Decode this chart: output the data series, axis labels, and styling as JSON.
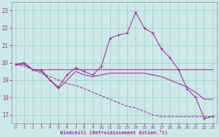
{
  "xlabel": "Windchill (Refroidissement éolien,°C)",
  "background_color": "#cce8e8",
  "grid_color": "#aacccc",
  "line_color": "#993399",
  "x_ticks": [
    0,
    1,
    2,
    3,
    4,
    5,
    6,
    7,
    8,
    9,
    10,
    11,
    12,
    13,
    14,
    15,
    16,
    17,
    18,
    19,
    20,
    21,
    22,
    23
  ],
  "y_ticks": [
    17,
    18,
    19,
    20,
    21,
    22,
    23
  ],
  "xlim": [
    -0.5,
    23.5
  ],
  "ylim": [
    16.5,
    23.5
  ],
  "lines": [
    {
      "x": [
        0,
        1,
        2,
        3,
        4,
        5,
        6,
        7,
        8,
        9,
        10,
        11,
        12,
        13,
        14,
        15,
        16,
        17,
        18,
        19,
        20,
        21,
        22,
        23
      ],
      "y": [
        19.9,
        20.0,
        19.6,
        19.6,
        19.0,
        18.6,
        19.3,
        19.7,
        19.5,
        19.3,
        19.8,
        21.4,
        21.6,
        21.7,
        22.9,
        22.0,
        21.7,
        20.8,
        20.3,
        19.6,
        18.5,
        18.0,
        16.8,
        16.9
      ],
      "style": "-",
      "marker": "+"
    },
    {
      "x": [
        0,
        1,
        2,
        3,
        4,
        5,
        6,
        7,
        8,
        9,
        10,
        11,
        12,
        13,
        14,
        15,
        16,
        17,
        18,
        19,
        20,
        21,
        22,
        23
      ],
      "y": [
        19.9,
        20.0,
        19.6,
        19.6,
        19.6,
        19.6,
        19.6,
        19.6,
        19.6,
        19.6,
        19.6,
        19.6,
        19.6,
        19.6,
        19.6,
        19.6,
        19.6,
        19.6,
        19.6,
        19.6,
        19.6,
        19.6,
        19.6,
        19.6
      ],
      "style": "-",
      "marker": null
    },
    {
      "x": [
        0,
        1,
        2,
        3,
        4,
        5,
        6,
        7,
        8,
        9,
        10,
        11,
        12,
        13,
        14,
        15,
        16,
        17,
        18,
        19,
        20,
        21,
        22,
        23
      ],
      "y": [
        19.9,
        19.9,
        19.6,
        19.5,
        19.0,
        18.5,
        19.0,
        19.5,
        19.3,
        19.2,
        19.3,
        19.4,
        19.4,
        19.4,
        19.4,
        19.4,
        19.3,
        19.2,
        19.0,
        18.8,
        18.6,
        18.3,
        17.9,
        17.9
      ],
      "style": "-",
      "marker": null
    },
    {
      "x": [
        0,
        1,
        2,
        3,
        4,
        5,
        6,
        7,
        8,
        9,
        10,
        11,
        12,
        13,
        14,
        15,
        16,
        17,
        18,
        19,
        20,
        21,
        22,
        23
      ],
      "y": [
        19.9,
        19.8,
        19.6,
        19.4,
        19.2,
        19.0,
        18.8,
        18.7,
        18.5,
        18.3,
        18.1,
        17.9,
        17.7,
        17.5,
        17.4,
        17.2,
        17.0,
        16.9,
        16.9,
        16.9,
        16.9,
        16.9,
        16.9,
        16.9
      ],
      "style": "--",
      "marker": null
    }
  ]
}
